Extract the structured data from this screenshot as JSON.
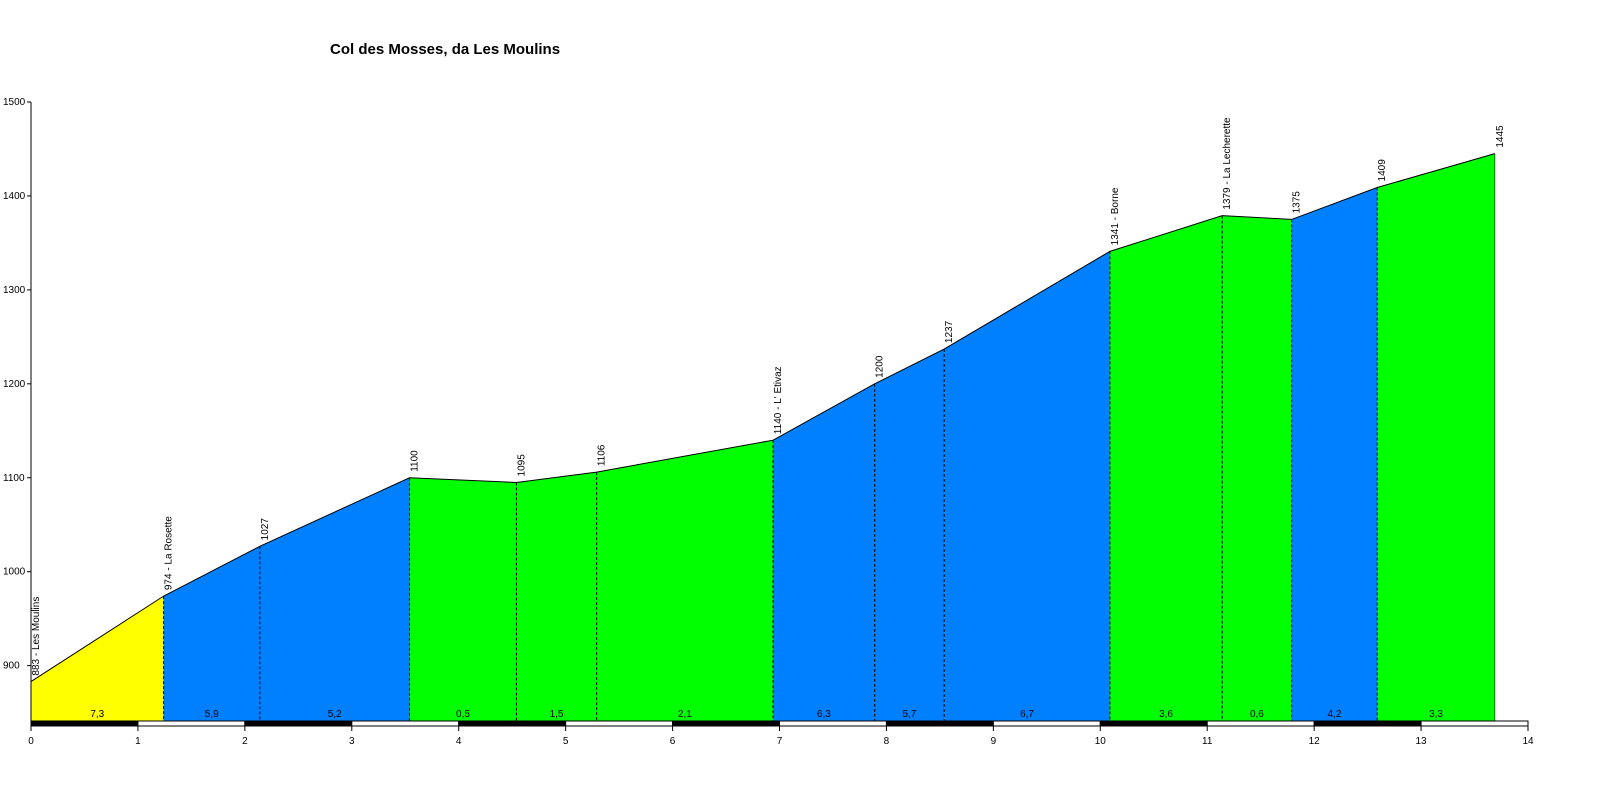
{
  "chart_data": {
    "type": "area",
    "title": "Col des Mosses, da Les Moulins",
    "xlabel": "",
    "ylabel": "",
    "xlim": [
      0,
      14
    ],
    "ylim": [
      840,
      1500
    ],
    "x_ticks": [
      "0",
      "1",
      "2",
      "3",
      "4",
      "5",
      "6",
      "7",
      "8",
      "9",
      "10",
      "11",
      "12",
      "13",
      "14"
    ],
    "y_ticks": [
      "900",
      "1000",
      "1100",
      "1200",
      "1300",
      "1400",
      "1500"
    ],
    "colors": {
      "yellow": "#ffff00",
      "blue": "#0080ff",
      "green": "#00ff00",
      "axis": "#000000"
    },
    "points": [
      {
        "km": 0,
        "alt": 883,
        "label": "883 - Les Moulins"
      },
      {
        "km": 1.24,
        "alt": 974,
        "label": "974 - La Rosette"
      },
      {
        "km": 2.14,
        "alt": 1027,
        "label": "1027"
      },
      {
        "km": 3.54,
        "alt": 1100,
        "label": "1100"
      },
      {
        "km": 4.54,
        "alt": 1095,
        "label": "1095"
      },
      {
        "km": 5.29,
        "alt": 1106,
        "label": "1106"
      },
      {
        "km": 6.94,
        "alt": 1140,
        "label": "1140 - L' Etivaz"
      },
      {
        "km": 7.89,
        "alt": 1200,
        "label": "1200"
      },
      {
        "km": 8.54,
        "alt": 1237,
        "label": "1237"
      },
      {
        "km": 10.09,
        "alt": 1341,
        "label": "1341 - Borne"
      },
      {
        "km": 11.14,
        "alt": 1379,
        "label": "1379 - La Lecherette"
      },
      {
        "km": 11.79,
        "alt": 1375,
        "label": "1375"
      },
      {
        "km": 12.59,
        "alt": 1409,
        "label": "1409"
      },
      {
        "km": 13.69,
        "alt": 1445,
        "label": "1445"
      }
    ],
    "segments": [
      {
        "gradient": "7,3",
        "color": "yellow"
      },
      {
        "gradient": "5,9",
        "color": "blue"
      },
      {
        "gradient": "5,2",
        "color": "blue"
      },
      {
        "gradient": "0,5",
        "color": "green"
      },
      {
        "gradient": "1,5",
        "color": "green"
      },
      {
        "gradient": "2,1",
        "color": "green"
      },
      {
        "gradient": "6,3",
        "color": "blue"
      },
      {
        "gradient": "5,7",
        "color": "blue"
      },
      {
        "gradient": "6,7",
        "color": "blue"
      },
      {
        "gradient": "3,6",
        "color": "green"
      },
      {
        "gradient": "0,6",
        "color": "green"
      },
      {
        "gradient": "4,2",
        "color": "blue"
      },
      {
        "gradient": "3,3",
        "color": "green"
      }
    ]
  }
}
